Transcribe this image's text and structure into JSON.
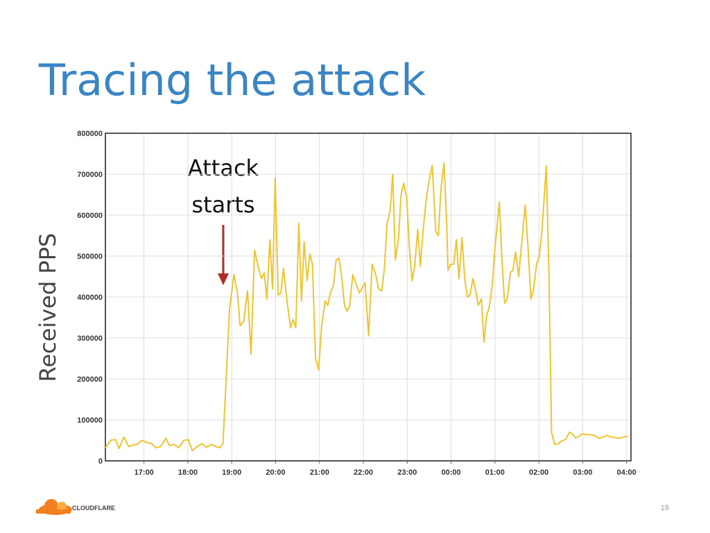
{
  "chart_data": {
    "type": "line",
    "title": "Tracing the attack",
    "y_label": "Received PPS",
    "annotation_lines": [
      "Attack",
      "starts"
    ],
    "grid": true,
    "xlim": [
      16.12,
      28.1
    ],
    "xticks": [
      {
        "value": 17,
        "label": "17:00"
      },
      {
        "value": 18,
        "label": "18:00"
      },
      {
        "value": 19,
        "label": "19:00"
      },
      {
        "value": 20,
        "label": "20:00"
      },
      {
        "value": 21,
        "label": "21:00"
      },
      {
        "value": 22,
        "label": "22:00"
      },
      {
        "value": 23,
        "label": "23:00"
      },
      {
        "value": 24,
        "label": "00:00"
      },
      {
        "value": 25,
        "label": "01:00"
      },
      {
        "value": 26,
        "label": "02:00"
      },
      {
        "value": 27,
        "label": "03:00"
      },
      {
        "value": 28,
        "label": "04:00"
      }
    ],
    "ylim": [
      0,
      800000
    ],
    "yticks": [
      0,
      100000,
      200000,
      300000,
      400000,
      500000,
      600000,
      700000,
      800000
    ],
    "x": [
      16.12,
      16.24,
      16.35,
      16.43,
      16.54,
      16.65,
      16.75,
      16.84,
      16.95,
      17.06,
      17.17,
      17.27,
      17.38,
      17.5,
      17.58,
      17.69,
      17.79,
      17.91,
      18.01,
      18.1,
      18.21,
      18.32,
      18.42,
      18.53,
      18.64,
      18.73,
      18.8,
      18.95,
      19.05,
      19.13,
      19.19,
      19.27,
      19.36,
      19.44,
      19.52,
      19.61,
      19.68,
      19.74,
      19.8,
      19.87,
      19.93,
      19.99,
      20.06,
      20.12,
      20.18,
      20.26,
      20.34,
      20.4,
      20.46,
      20.53,
      20.59,
      20.65,
      20.72,
      20.78,
      20.84,
      20.91,
      20.98,
      21.05,
      21.13,
      21.19,
      21.25,
      21.32,
      21.38,
      21.44,
      21.5,
      21.57,
      21.63,
      21.69,
      21.76,
      21.84,
      21.91,
      22.04,
      22.12,
      22.2,
      22.28,
      22.35,
      22.42,
      22.48,
      22.54,
      22.61,
      22.67,
      22.73,
      22.8,
      22.86,
      22.92,
      22.99,
      23.05,
      23.11,
      23.17,
      23.24,
      23.3,
      23.36,
      23.43,
      23.49,
      23.57,
      23.65,
      23.71,
      23.77,
      23.84,
      23.9,
      23.93,
      23.99,
      24.06,
      24.12,
      24.18,
      24.25,
      24.31,
      24.37,
      24.43,
      24.5,
      24.56,
      24.62,
      24.69,
      24.75,
      24.81,
      24.87,
      24.94,
      25.0,
      25.1,
      25.16,
      25.22,
      25.28,
      25.35,
      25.41,
      25.47,
      25.54,
      25.6,
      25.69,
      25.76,
      25.82,
      25.88,
      25.95,
      26.01,
      26.07,
      26.17,
      26.23,
      26.29,
      26.36,
      26.45,
      26.51,
      26.61,
      26.7,
      26.77,
      26.83,
      26.89,
      26.99,
      27.08,
      27.17,
      27.27,
      27.36,
      27.46,
      27.55,
      27.65,
      27.74,
      27.83,
      27.93,
      28.02
    ],
    "series": [
      {
        "name": "Received PPS",
        "color": "#f0c330",
        "values": [
          32000,
          50000,
          52000,
          30000,
          58000,
          35000,
          38000,
          40000,
          50000,
          45000,
          42000,
          32000,
          35000,
          55000,
          37000,
          40000,
          32000,
          50000,
          52000,
          25000,
          35000,
          42000,
          33000,
          40000,
          35000,
          32000,
          42000,
          370000,
          455000,
          410000,
          330000,
          340000,
          415000,
          260000,
          515000,
          470000,
          445000,
          460000,
          395000,
          540000,
          420000,
          690000,
          405000,
          410000,
          470000,
          390000,
          325000,
          345000,
          325000,
          580000,
          390000,
          535000,
          440000,
          505000,
          480000,
          250000,
          222000,
          330000,
          390000,
          380000,
          410000,
          430000,
          490000,
          495000,
          455000,
          380000,
          365000,
          380000,
          455000,
          430000,
          410000,
          435000,
          305000,
          480000,
          455000,
          420000,
          415000,
          470000,
          580000,
          610000,
          700000,
          490000,
          540000,
          650000,
          678000,
          640000,
          520000,
          440000,
          475000,
          565000,
          475000,
          560000,
          635000,
          680000,
          722000,
          560000,
          550000,
          665000,
          728000,
          580000,
          465000,
          480000,
          480000,
          540000,
          445000,
          545000,
          445000,
          400000,
          405000,
          445000,
          415000,
          380000,
          395000,
          290000,
          355000,
          375000,
          430000,
          520000,
          632000,
          490000,
          385000,
          395000,
          460000,
          465000,
          510000,
          450000,
          520000,
          625000,
          510000,
          395000,
          420000,
          480000,
          500000,
          560000,
          720000,
          460000,
          70000,
          40000,
          42000,
          48000,
          52000,
          70000,
          65000,
          56000,
          58000,
          66000,
          64000,
          64000,
          62000,
          55000,
          58000,
          62000,
          58000,
          57000,
          55000,
          58000,
          60000
        ]
      }
    ]
  },
  "footer": {
    "logo": "CLOUDFLARE",
    "page": "18"
  }
}
